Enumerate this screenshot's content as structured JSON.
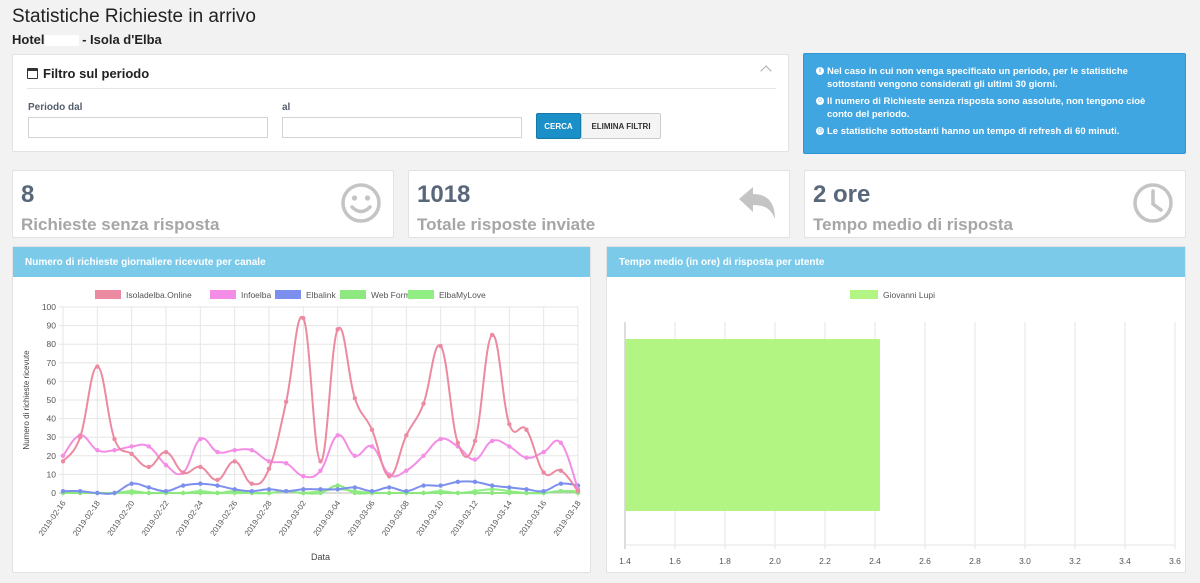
{
  "page": {
    "title": "Statistiche Richieste in arrivo",
    "subtitle_prefix": "Hotel",
    "subtitle_suffix": " - Isola d'Elba"
  },
  "filter": {
    "header": "Filtro sul periodo",
    "from_label": "Periodo dal",
    "from_value": "",
    "to_label": "al",
    "to_value": "",
    "search_button": "CERCA",
    "clear_button": "ELIMINA FILTRI"
  },
  "info": [
    "Nel caso in cui non venga specificato un periodo, per le statistiche sottostanti vengono considerati gli ultimi 30 giorni.",
    "Il numero di Richieste senza risposta sono assolute, non tengono cioè conto del periodo.",
    "Le statistiche sottostanti hanno un tempo di refresh di 60 minuti."
  ],
  "stats": [
    {
      "value": "8",
      "label": "Richieste senza risposta",
      "icon": "smile-icon"
    },
    {
      "value": "1018",
      "label": "Totale risposte inviate",
      "icon": "reply-icon"
    },
    {
      "value": "2 ore",
      "label": "Tempo medio di risposta",
      "icon": "clock-icon"
    }
  ],
  "colors": {
    "accent": "#40a6e1",
    "chart_header": "#7ccaea",
    "button": "#1b8fc7"
  },
  "chart_data": [
    {
      "type": "line",
      "title": "Numero di richieste giornaliere ricevute per canale",
      "xlabel": "Data",
      "ylabel": "Numero di richieste ricevute",
      "ylim": [
        0,
        100
      ],
      "yticks": [
        0,
        10,
        20,
        30,
        40,
        50,
        60,
        70,
        80,
        90,
        100
      ],
      "legend_position": "top",
      "grid": true,
      "x": [
        "2019-02-16",
        "2019-02-17",
        "2019-02-18",
        "2019-02-19",
        "2019-02-20",
        "2019-02-21",
        "2019-02-22",
        "2019-02-23",
        "2019-02-24",
        "2019-02-25",
        "2019-02-26",
        "2019-02-27",
        "2019-02-28",
        "2019-03-01",
        "2019-03-02",
        "2019-03-03",
        "2019-03-04",
        "2019-03-05",
        "2019-03-06",
        "2019-03-07",
        "2019-03-08",
        "2019-03-09",
        "2019-03-10",
        "2019-03-11",
        "2019-03-12",
        "2019-03-13",
        "2019-03-14",
        "2019-03-15",
        "2019-03-16",
        "2019-03-17",
        "2019-03-18"
      ],
      "xtick_labels": [
        "2019-02-16",
        "2019-02-18",
        "2019-02-20",
        "2019-02-22",
        "2019-02-24",
        "2019-02-26",
        "2019-02-28",
        "2019-03-02",
        "2019-03-04",
        "2019-03-06",
        "2019-03-08",
        "2019-03-10",
        "2019-03-12",
        "2019-03-14",
        "2019-03-16",
        "2019-03-18"
      ],
      "series": [
        {
          "name": "Isoladelba.Online",
          "color": "#ec8aa2",
          "values": [
            17,
            30,
            68,
            29,
            21,
            14,
            22,
            11,
            14,
            7,
            17,
            5,
            13,
            49,
            94,
            17,
            88,
            51,
            34,
            9,
            31,
            48,
            79,
            27,
            28,
            85,
            37,
            34,
            11,
            12,
            1
          ]
        },
        {
          "name": "Infoelba",
          "color": "#f48de5",
          "values": [
            20,
            31,
            23,
            23,
            25,
            25,
            15,
            11,
            29,
            22,
            23,
            23,
            17,
            16,
            9,
            12,
            31,
            20,
            25,
            10,
            12,
            20,
            29,
            25,
            18,
            28,
            25,
            19,
            22,
            27,
            2
          ]
        },
        {
          "name": "Elbalink",
          "color": "#7c8fee",
          "values": [
            1,
            1,
            0,
            0,
            5,
            3,
            1,
            4,
            5,
            4,
            2,
            1,
            2,
            1,
            2,
            2,
            2,
            3,
            1,
            3,
            1,
            4,
            4,
            6,
            6,
            4,
            3,
            2,
            1,
            5,
            4
          ]
        },
        {
          "name": "Web Form",
          "color": "#8de87f",
          "values": [
            0,
            0,
            0,
            0,
            1,
            0,
            0,
            0,
            0,
            0,
            1,
            0,
            0,
            1,
            0,
            0,
            4,
            0,
            0,
            0,
            0,
            0,
            0,
            0,
            0,
            0,
            0,
            0,
            0,
            1,
            0
          ]
        },
        {
          "name": "ElbaMyLove",
          "color": "#90ee85",
          "values": [
            0,
            0,
            0,
            0,
            0,
            0,
            0,
            0,
            1,
            0,
            0,
            0,
            0,
            1,
            0,
            1,
            2,
            1,
            0,
            0,
            0,
            0,
            1,
            0,
            1,
            2,
            1,
            0,
            0,
            1,
            1
          ]
        }
      ]
    },
    {
      "type": "bar",
      "orientation": "horizontal",
      "title": "Tempo medio (in ore) di risposta per utente",
      "xlim": [
        1.4,
        3.6
      ],
      "xticks": [
        1.4,
        1.6,
        1.8,
        2.0,
        2.2,
        2.4,
        2.6,
        2.8,
        3.0,
        3.2,
        3.4,
        3.6
      ],
      "xtick_labels": [
        "1.4",
        "1.6",
        "1.8",
        "2.0",
        "2.2",
        "2.4",
        "2.6",
        "2.8",
        "3.0",
        "3.2",
        "3.4",
        "3.6"
      ],
      "legend_position": "top",
      "grid": true,
      "series": [
        {
          "name": "Giovanni Lupi",
          "color": "#b3f582",
          "values": [
            2.42
          ]
        }
      ]
    }
  ]
}
